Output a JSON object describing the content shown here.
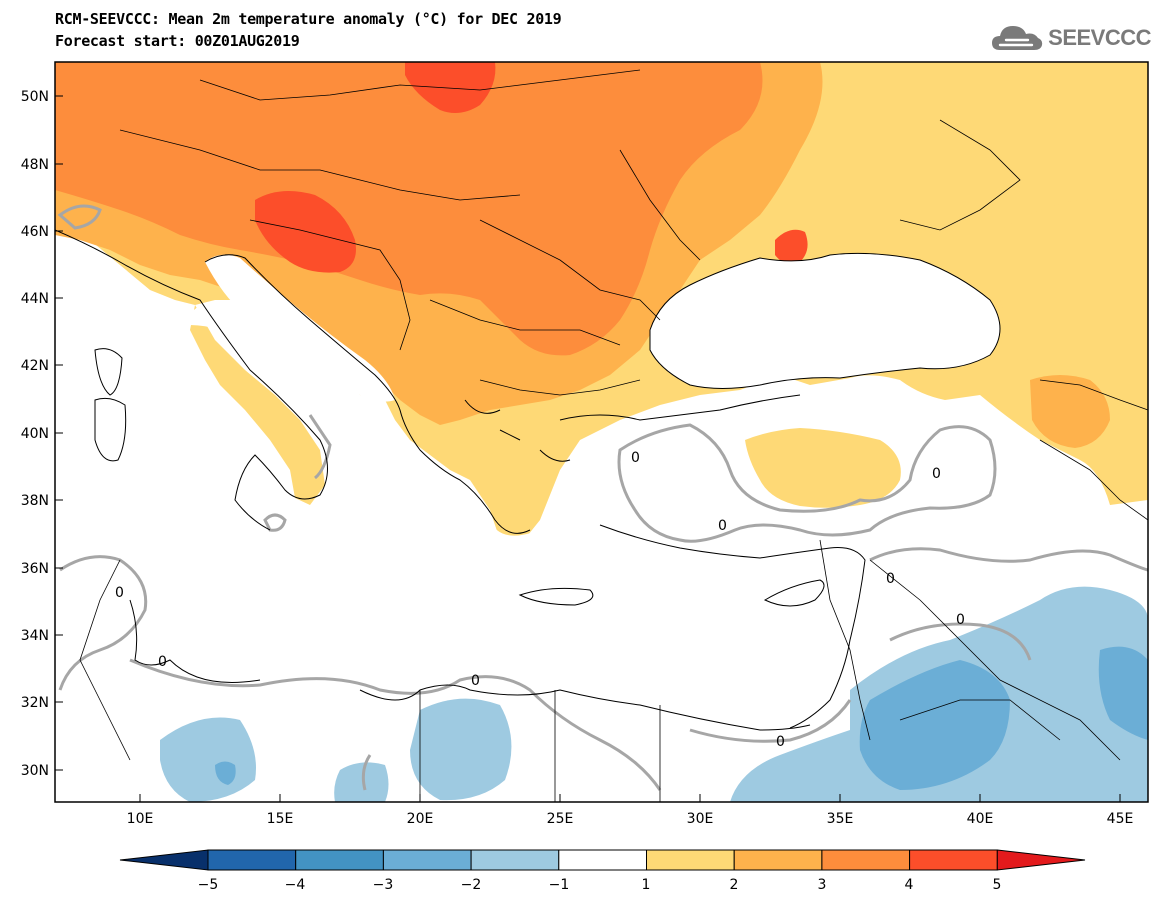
{
  "title": {
    "line1": "RCM-SEEVCCC: Mean 2m temperature anomaly (°C) for DEC 2019",
    "line2": "Forecast start: 00Z01AUG2019"
  },
  "logo": {
    "text": "SEEVCCC",
    "icon": "cloud-icon"
  },
  "map": {
    "lat_labels": [
      "50N",
      "48N",
      "46N",
      "44N",
      "42N",
      "40N",
      "38N",
      "36N",
      "34N",
      "32N",
      "30N"
    ],
    "lon_labels": [
      "10E",
      "15E",
      "20E",
      "25E",
      "30E",
      "35E",
      "40E",
      "45E"
    ],
    "contour_label": "0",
    "lat_range": [
      29,
      51
    ],
    "lon_range": [
      7,
      46
    ]
  },
  "colorbar": {
    "tick_labels": [
      "−5",
      "−4",
      "−3",
      "−2",
      "−1",
      "1",
      "2",
      "3",
      "4",
      "5"
    ],
    "colors": [
      "#08306b",
      "#2166ac",
      "#4393c3",
      "#6baed6",
      "#9ecae1",
      "#ffffff",
      "#fed976",
      "#feb24c",
      "#fd8d3c",
      "#fc4e2a",
      "#e31a1c"
    ]
  }
}
